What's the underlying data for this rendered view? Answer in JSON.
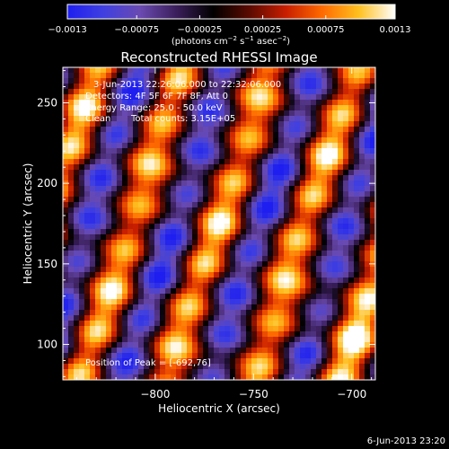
{
  "chart_data": {
    "type": "heatmap",
    "title": "Reconstructed RHESSI Image",
    "xlabel": "Heliocentric X (arcsec)",
    "ylabel": "Heliocentric Y (arcsec)",
    "xlim": [
      -847,
      -688
    ],
    "ylim": [
      78,
      272
    ],
    "x_ticks": [
      -800,
      -750,
      -700
    ],
    "x_tick_labels": [
      "−800",
      "−750",
      "−700"
    ],
    "y_ticks": [
      100,
      150,
      200,
      250
    ],
    "y_tick_labels": [
      "100",
      "150",
      "200",
      "250"
    ],
    "colorbar": {
      "range": [
        -0.0013,
        0.0013
      ],
      "ticks": [
        -0.0013,
        -0.00075,
        -0.00025,
        0.00025,
        0.00075,
        0.0013
      ],
      "tick_labels": [
        "−0.0013",
        "−0.00075",
        "−0.00025",
        "0.00025",
        "0.00075",
        "0.0013"
      ],
      "units_prefix": "(photons cm",
      "units_exp1": "−2",
      "units_mid": " s",
      "units_exp2": "−1",
      "units_mid2": " asec",
      "units_exp3": "−2",
      "units_suffix": ")",
      "colormap": [
        "#1e1ef0",
        "#4040e0",
        "#6a4ab0",
        "#3a1e5a",
        "#000000",
        "#5a0a00",
        "#c81e00",
        "#ff6a00",
        "#ffc020",
        "#ffffff"
      ]
    },
    "annotations": {
      "line1": "3-Jun-2013 22:26:06.000 to 22:32:06.000",
      "line2": "Detectors: 4F 5F 6F 7F 8F, Att 0",
      "line3": "Energy Range: 25.0 - 50.0 keV",
      "line4_left": "Clean",
      "line4_right": "Total counts: 3.15E+05",
      "peak": "Position of Peak = [-692,76]"
    },
    "timestamp": "6-Jun-2013 23:20",
    "peak_position": [
      -692,
      76
    ],
    "pattern": {
      "description_free": true,
      "stripe_x_at_bottom": [
        -838,
        -790,
        -748,
        -705
      ],
      "stripe_types": [
        "bright",
        "bright",
        "bright",
        "bright"
      ],
      "dark_valley_x_at_bottom": [
        -812,
        -768,
        -727,
        -690
      ]
    }
  }
}
